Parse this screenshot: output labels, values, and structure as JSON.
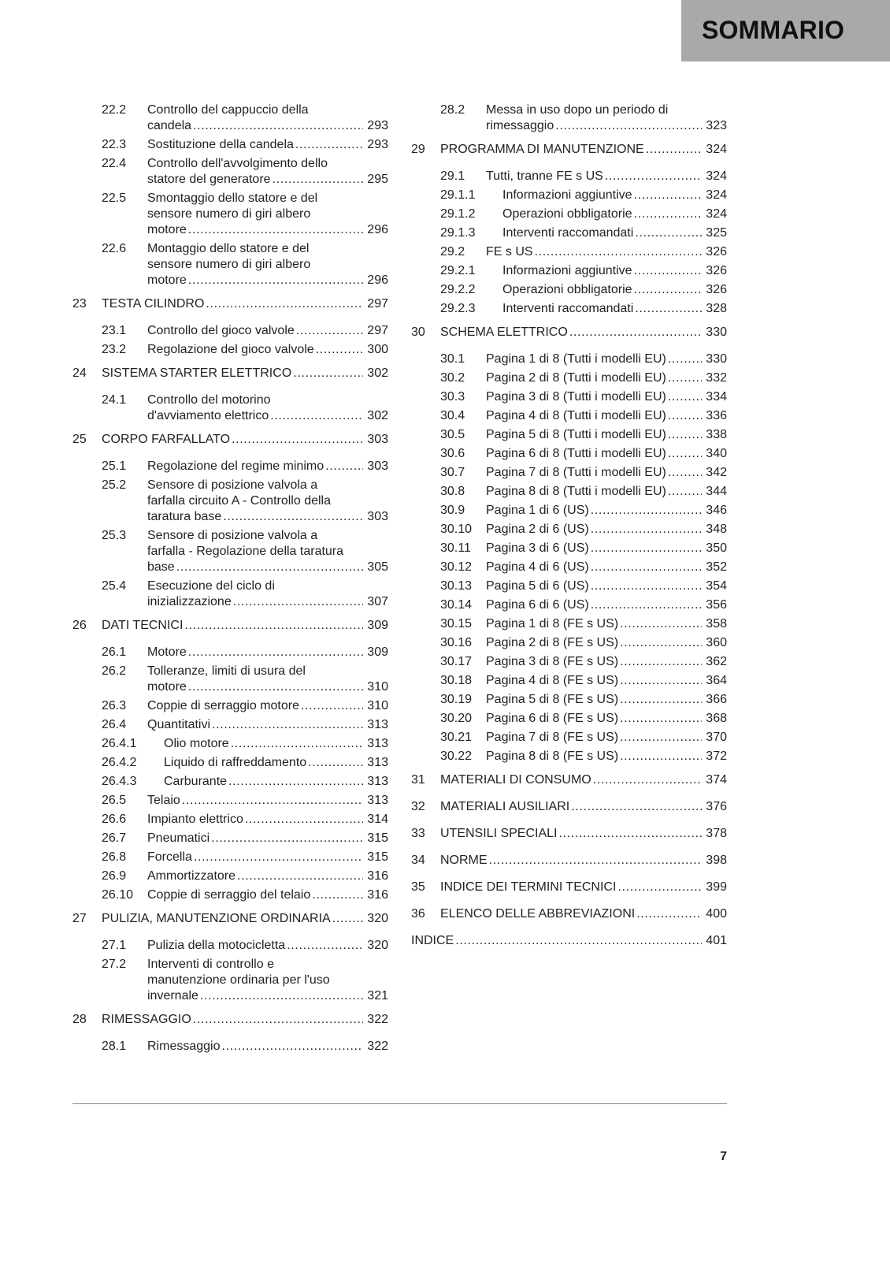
{
  "header": {
    "title": "SOMMARIO",
    "background": "#a9a9a9"
  },
  "columns": [
    [
      {
        "level": 2,
        "num": "22.2",
        "lines": [
          "Controllo del cappuccio della",
          "candela"
        ],
        "page": "293"
      },
      {
        "level": 2,
        "num": "22.3",
        "lines": [
          "Sostituzione della candela"
        ],
        "page": "293"
      },
      {
        "level": 2,
        "num": "22.4",
        "lines": [
          "Controllo dell'avvolgimento dello",
          "statore del generatore"
        ],
        "page": "295"
      },
      {
        "level": 2,
        "num": "22.5",
        "lines": [
          "Smontaggio dello statore e del",
          "sensore numero di giri albero",
          "motore"
        ],
        "page": "296"
      },
      {
        "level": 2,
        "num": "22.6",
        "lines": [
          "Montaggio dello statore e del",
          "sensore numero di giri albero",
          "motore"
        ],
        "page": "296"
      },
      {
        "level": 1,
        "num": "23",
        "lines": [
          "TESTA CILINDRO"
        ],
        "page": "297"
      },
      {
        "level": 2,
        "num": "23.1",
        "lines": [
          "Controllo del gioco valvole"
        ],
        "page": "297"
      },
      {
        "level": 2,
        "num": "23.2",
        "lines": [
          "Regolazione del gioco valvole"
        ],
        "page": "300"
      },
      {
        "level": 1,
        "num": "24",
        "lines": [
          "SISTEMA STARTER ELETTRICO"
        ],
        "page": "302"
      },
      {
        "level": 2,
        "num": "24.1",
        "lines": [
          "Controllo del motorino",
          "d'avviamento elettrico"
        ],
        "page": "302"
      },
      {
        "level": 1,
        "num": "25",
        "lines": [
          "CORPO FARFALLATO"
        ],
        "page": "303"
      },
      {
        "level": 2,
        "num": "25.1",
        "lines": [
          "Regolazione del regime minimo"
        ],
        "page": "303"
      },
      {
        "level": 2,
        "num": "25.2",
        "lines": [
          "Sensore di posizione valvola a",
          "farfalla circuito A - Controllo della",
          "taratura base"
        ],
        "page": "303"
      },
      {
        "level": 2,
        "num": "25.3",
        "lines": [
          "Sensore di posizione valvola a",
          "farfalla - Regolazione della taratura",
          "base"
        ],
        "page": "305"
      },
      {
        "level": 2,
        "num": "25.4",
        "lines": [
          "Esecuzione del ciclo di",
          "inizializzazione"
        ],
        "page": "307"
      },
      {
        "level": 1,
        "num": "26",
        "lines": [
          "DATI TECNICI"
        ],
        "page": "309"
      },
      {
        "level": 2,
        "num": "26.1",
        "lines": [
          "Motore"
        ],
        "page": "309"
      },
      {
        "level": 2,
        "num": "26.2",
        "lines": [
          "Tolleranze, limiti di usura del",
          "motore"
        ],
        "page": "310"
      },
      {
        "level": 2,
        "num": "26.3",
        "lines": [
          "Coppie di serraggio motore"
        ],
        "page": "310"
      },
      {
        "level": 2,
        "num": "26.4",
        "lines": [
          "Quantitativi"
        ],
        "page": "313"
      },
      {
        "level": 3,
        "num": "26.4.1",
        "lines": [
          "Olio motore"
        ],
        "page": "313"
      },
      {
        "level": 3,
        "num": "26.4.2",
        "lines": [
          "Liquido di raffreddamento"
        ],
        "page": "313"
      },
      {
        "level": 3,
        "num": "26.4.3",
        "lines": [
          "Carburante"
        ],
        "page": "313"
      },
      {
        "level": 2,
        "num": "26.5",
        "lines": [
          "Telaio"
        ],
        "page": "313"
      },
      {
        "level": 2,
        "num": "26.6",
        "lines": [
          "Impianto elettrico"
        ],
        "page": "314"
      },
      {
        "level": 2,
        "num": "26.7",
        "lines": [
          "Pneumatici"
        ],
        "page": "315"
      },
      {
        "level": 2,
        "num": "26.8",
        "lines": [
          "Forcella"
        ],
        "page": "315"
      },
      {
        "level": 2,
        "num": "26.9",
        "lines": [
          "Ammortizzatore"
        ],
        "page": "316"
      },
      {
        "level": 2,
        "num": "26.10",
        "lines": [
          "Coppie di serraggio del telaio"
        ],
        "page": "316"
      },
      {
        "level": 1,
        "num": "27",
        "lines": [
          "PULIZIA, MANUTENZIONE ORDINARIA"
        ],
        "page": "320"
      },
      {
        "level": 2,
        "num": "27.1",
        "lines": [
          "Pulizia della motocicletta"
        ],
        "page": "320"
      },
      {
        "level": 2,
        "num": "27.2",
        "lines": [
          "Interventi di controllo e",
          "manutenzione ordinaria per l'uso",
          "invernale"
        ],
        "page": "321"
      },
      {
        "level": 1,
        "num": "28",
        "lines": [
          "RIMESSAGGIO"
        ],
        "page": "322"
      },
      {
        "level": 2,
        "num": "28.1",
        "lines": [
          "Rimessaggio"
        ],
        "page": "322"
      }
    ],
    [
      {
        "level": 2,
        "num": "28.2",
        "lines": [
          "Messa in uso dopo un periodo di",
          "rimessaggio"
        ],
        "page": "323"
      },
      {
        "level": 1,
        "num": "29",
        "lines": [
          "PROGRAMMA DI MANUTENZIONE"
        ],
        "page": "324"
      },
      {
        "level": 2,
        "num": "29.1",
        "lines": [
          "Tutti, tranne FE s US"
        ],
        "page": "324"
      },
      {
        "level": 3,
        "num": "29.1.1",
        "lines": [
          "Informazioni aggiuntive"
        ],
        "page": "324"
      },
      {
        "level": 3,
        "num": "29.1.2",
        "lines": [
          "Operazioni obbligatorie"
        ],
        "page": "324"
      },
      {
        "level": 3,
        "num": "29.1.3",
        "lines": [
          "Interventi raccomandati"
        ],
        "page": "325"
      },
      {
        "level": 2,
        "num": "29.2",
        "lines": [
          "FE s US"
        ],
        "page": "326"
      },
      {
        "level": 3,
        "num": "29.2.1",
        "lines": [
          "Informazioni aggiuntive"
        ],
        "page": "326"
      },
      {
        "level": 3,
        "num": "29.2.2",
        "lines": [
          "Operazioni obbligatorie"
        ],
        "page": "326"
      },
      {
        "level": 3,
        "num": "29.2.3",
        "lines": [
          "Interventi raccomandati"
        ],
        "page": "328"
      },
      {
        "level": 1,
        "num": "30",
        "lines": [
          "SCHEMA ELETTRICO"
        ],
        "page": "330"
      },
      {
        "level": 2,
        "num": "30.1",
        "lines": [
          "Pagina 1 di 8 (Tutti i modelli EU)"
        ],
        "page": "330"
      },
      {
        "level": 2,
        "num": "30.2",
        "lines": [
          "Pagina 2 di 8 (Tutti i modelli EU)"
        ],
        "page": "332"
      },
      {
        "level": 2,
        "num": "30.3",
        "lines": [
          "Pagina 3 di 8 (Tutti i modelli EU)"
        ],
        "page": "334"
      },
      {
        "level": 2,
        "num": "30.4",
        "lines": [
          "Pagina 4 di 8 (Tutti i modelli EU)"
        ],
        "page": "336"
      },
      {
        "level": 2,
        "num": "30.5",
        "lines": [
          "Pagina 5 di 8 (Tutti i modelli EU)"
        ],
        "page": "338"
      },
      {
        "level": 2,
        "num": "30.6",
        "lines": [
          "Pagina 6 di 8 (Tutti i modelli EU)"
        ],
        "page": "340"
      },
      {
        "level": 2,
        "num": "30.7",
        "lines": [
          "Pagina 7 di 8 (Tutti i modelli EU)"
        ],
        "page": "342"
      },
      {
        "level": 2,
        "num": "30.8",
        "lines": [
          "Pagina 8 di 8 (Tutti i modelli EU)"
        ],
        "page": "344"
      },
      {
        "level": 2,
        "num": "30.9",
        "lines": [
          "Pagina 1 di 6 (US)"
        ],
        "page": "346"
      },
      {
        "level": 2,
        "num": "30.10",
        "lines": [
          "Pagina 2 di 6 (US)"
        ],
        "page": "348"
      },
      {
        "level": 2,
        "num": "30.11",
        "lines": [
          "Pagina 3 di 6 (US)"
        ],
        "page": "350"
      },
      {
        "level": 2,
        "num": "30.12",
        "lines": [
          "Pagina 4 di 6 (US)"
        ],
        "page": "352"
      },
      {
        "level": 2,
        "num": "30.13",
        "lines": [
          "Pagina 5 di 6 (US)"
        ],
        "page": "354"
      },
      {
        "level": 2,
        "num": "30.14",
        "lines": [
          "Pagina 6 di 6 (US)"
        ],
        "page": "356"
      },
      {
        "level": 2,
        "num": "30.15",
        "lines": [
          "Pagina 1 di 8 (FE s US)"
        ],
        "page": "358"
      },
      {
        "level": 2,
        "num": "30.16",
        "lines": [
          "Pagina 2 di 8 (FE s US)"
        ],
        "page": "360"
      },
      {
        "level": 2,
        "num": "30.17",
        "lines": [
          "Pagina 3 di 8 (FE s US)"
        ],
        "page": "362"
      },
      {
        "level": 2,
        "num": "30.18",
        "lines": [
          "Pagina 4 di 8 (FE s US)"
        ],
        "page": "364"
      },
      {
        "level": 2,
        "num": "30.19",
        "lines": [
          "Pagina 5 di 8 (FE s US)"
        ],
        "page": "366"
      },
      {
        "level": 2,
        "num": "30.20",
        "lines": [
          "Pagina 6 di 8 (FE s US)"
        ],
        "page": "368"
      },
      {
        "level": 2,
        "num": "30.21",
        "lines": [
          "Pagina 7 di 8 (FE s US)"
        ],
        "page": "370"
      },
      {
        "level": 2,
        "num": "30.22",
        "lines": [
          "Pagina 8 di 8 (FE s US)"
        ],
        "page": "372"
      },
      {
        "level": 1,
        "num": "31",
        "lines": [
          "MATERIALI DI CONSUMO"
        ],
        "page": "374"
      },
      {
        "level": 1,
        "num": "32",
        "lines": [
          "MATERIALI AUSILIARI"
        ],
        "page": "376"
      },
      {
        "level": 1,
        "num": "33",
        "lines": [
          "UTENSILI SPECIALI"
        ],
        "page": "378"
      },
      {
        "level": 1,
        "num": "34",
        "lines": [
          "NORME"
        ],
        "page": "398"
      },
      {
        "level": 1,
        "num": "35",
        "lines": [
          "INDICE DEI TERMINI TECNICI"
        ],
        "page": "399"
      },
      {
        "level": 1,
        "num": "36",
        "lines": [
          "ELENCO DELLE ABBREVIAZIONI"
        ],
        "page": "400"
      },
      {
        "level": 0,
        "num": "",
        "lines": [
          "INDICE"
        ],
        "page": "401"
      }
    ]
  ],
  "footer": {
    "page_number": "7"
  }
}
